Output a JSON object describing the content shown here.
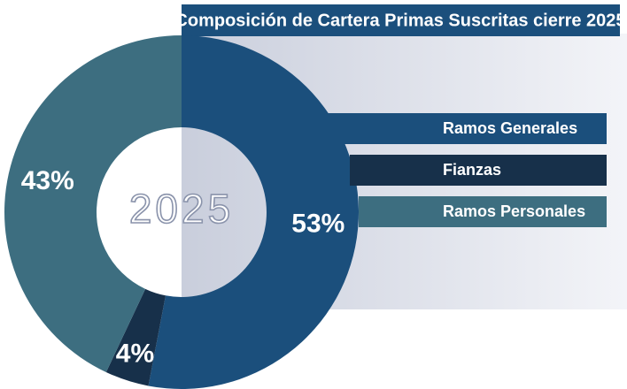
{
  "chart_data": {
    "type": "donut",
    "title": "Composición de Cartera Primas Suscritas cierre 2025",
    "center_label": "2025",
    "categories": [
      "Ramos Generales",
      "Fianzas",
      "Ramos Personales"
    ],
    "values": [
      53,
      4,
      43
    ],
    "value_labels": [
      "53%",
      "4%",
      "43%"
    ],
    "colors": [
      "#1b4f7c",
      "#17304a",
      "#3d6e80"
    ]
  }
}
